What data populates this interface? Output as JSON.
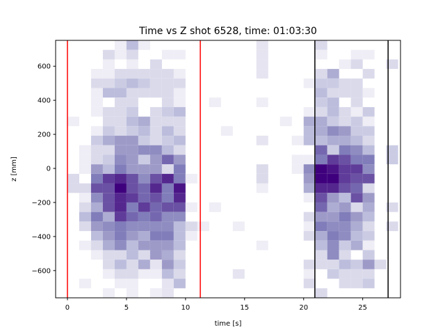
{
  "chart_data": {
    "type": "heatmap",
    "title": "Time vs Z shot 6528, time: 01:03:30",
    "xlabel": "time [s]",
    "ylabel": "z [mm]",
    "xlim": [
      -1.0,
      28.2
    ],
    "ylim": [
      -760,
      752
    ],
    "xticks": [
      0,
      5,
      10,
      15,
      20,
      25
    ],
    "yticks": [
      -600,
      -400,
      -200,
      0,
      200,
      400,
      600
    ],
    "colormap": "Purples",
    "t_bin_width": 1,
    "z_bin_top": 752,
    "z_bin_height": 56,
    "cells_note_format": "[t_start, z_row_from_top, relative_count_0_to_8]",
    "cells": [
      [
        4,
        0,
        1
      ],
      [
        5,
        0,
        3
      ],
      [
        6,
        0,
        1
      ],
      [
        3,
        1,
        2
      ],
      [
        4,
        1,
        1
      ],
      [
        5,
        1,
        2
      ],
      [
        8,
        1,
        1
      ],
      [
        9,
        1,
        1
      ],
      [
        3,
        2,
        1
      ],
      [
        5,
        2,
        1
      ],
      [
        7,
        2,
        2
      ],
      [
        2,
        3,
        1
      ],
      [
        3,
        3,
        1
      ],
      [
        4,
        3,
        2
      ],
      [
        5,
        3,
        2
      ],
      [
        6,
        3,
        2
      ],
      [
        7,
        3,
        2
      ],
      [
        8,
        3,
        2
      ],
      [
        9,
        3,
        1
      ],
      [
        2,
        4,
        2
      ],
      [
        3,
        4,
        2
      ],
      [
        4,
        4,
        2.5
      ],
      [
        5,
        4,
        3
      ],
      [
        6,
        4,
        2.5
      ],
      [
        7,
        4,
        2
      ],
      [
        8,
        4,
        2
      ],
      [
        9,
        4,
        2
      ],
      [
        2,
        5,
        1
      ],
      [
        3,
        5,
        3
      ],
      [
        4,
        5,
        3
      ],
      [
        5,
        5,
        2
      ],
      [
        6,
        5,
        2
      ],
      [
        7,
        5,
        2
      ],
      [
        8,
        5,
        2
      ],
      [
        9,
        5,
        1
      ],
      [
        2,
        6,
        1
      ],
      [
        4,
        6,
        2
      ],
      [
        5,
        6,
        2
      ],
      [
        8,
        6,
        2
      ],
      [
        9,
        6,
        1
      ],
      [
        2,
        7,
        1
      ],
      [
        3,
        7,
        2
      ],
      [
        4,
        7,
        2
      ],
      [
        5,
        7,
        2.5
      ],
      [
        7,
        7,
        2
      ],
      [
        8,
        7,
        2.5
      ],
      [
        9,
        7,
        3
      ],
      [
        0,
        8,
        1
      ],
      [
        3,
        8,
        2
      ],
      [
        4,
        8,
        2
      ],
      [
        5,
        8,
        3
      ],
      [
        6,
        8,
        3.5
      ],
      [
        7,
        8,
        2
      ],
      [
        8,
        8,
        2
      ],
      [
        9,
        8,
        2
      ],
      [
        2,
        9,
        1
      ],
      [
        3,
        9,
        2.5
      ],
      [
        4,
        9,
        2
      ],
      [
        5,
        9,
        2.5
      ],
      [
        6,
        9,
        3
      ],
      [
        7,
        9,
        2
      ],
      [
        8,
        9,
        3
      ],
      [
        9,
        9,
        2
      ],
      [
        2,
        10,
        2.5
      ],
      [
        3,
        10,
        3.5
      ],
      [
        4,
        10,
        4
      ],
      [
        5,
        10,
        4
      ],
      [
        6,
        10,
        2.5
      ],
      [
        7,
        10,
        2
      ],
      [
        8,
        10,
        2.5
      ],
      [
        9,
        10,
        3
      ],
      [
        1,
        11,
        1
      ],
      [
        2,
        11,
        2
      ],
      [
        3,
        11,
        2
      ],
      [
        4,
        11,
        4
      ],
      [
        5,
        11,
        4
      ],
      [
        6,
        11,
        4.5
      ],
      [
        7,
        11,
        4.5
      ],
      [
        8,
        11,
        3
      ],
      [
        9,
        11,
        2
      ],
      [
        1,
        12,
        1
      ],
      [
        2,
        12,
        2
      ],
      [
        3,
        12,
        2.5
      ],
      [
        4,
        12,
        4.5
      ],
      [
        5,
        12,
        4
      ],
      [
        6,
        12,
        2.5
      ],
      [
        7,
        12,
        4
      ],
      [
        8,
        12,
        5.5
      ],
      [
        9,
        12,
        4
      ],
      [
        1,
        13,
        1
      ],
      [
        2,
        13,
        4
      ],
      [
        3,
        13,
        3
      ],
      [
        4,
        13,
        5
      ],
      [
        5,
        13,
        4
      ],
      [
        6,
        13,
        4
      ],
      [
        7,
        13,
        4
      ],
      [
        8,
        13,
        2
      ],
      [
        9,
        13,
        5
      ],
      [
        0,
        14,
        2
      ],
      [
        2,
        14,
        5
      ],
      [
        3,
        14,
        6.5
      ],
      [
        4,
        14,
        7
      ],
      [
        5,
        14,
        6
      ],
      [
        6,
        14,
        4.5
      ],
      [
        7,
        14,
        6
      ],
      [
        8,
        14,
        7
      ],
      [
        9,
        14,
        5
      ],
      [
        10,
        14,
        1
      ],
      [
        0,
        15,
        2
      ],
      [
        1,
        15,
        2
      ],
      [
        2,
        15,
        6
      ],
      [
        3,
        15,
        6
      ],
      [
        4,
        15,
        8
      ],
      [
        5,
        15,
        6
      ],
      [
        6,
        15,
        5.5
      ],
      [
        7,
        15,
        7
      ],
      [
        8,
        15,
        5
      ],
      [
        9,
        15,
        7.5
      ],
      [
        1,
        16,
        1
      ],
      [
        2,
        16,
        4.5
      ],
      [
        3,
        16,
        6
      ],
      [
        4,
        16,
        7
      ],
      [
        5,
        16,
        6.5
      ],
      [
        6,
        16,
        5.5
      ],
      [
        7,
        16,
        6
      ],
      [
        8,
        16,
        5
      ],
      [
        9,
        16,
        7
      ],
      [
        1,
        17,
        2
      ],
      [
        2,
        17,
        3.5
      ],
      [
        3,
        17,
        6
      ],
      [
        4,
        17,
        7
      ],
      [
        5,
        17,
        5
      ],
      [
        6,
        17,
        6.5
      ],
      [
        7,
        17,
        5.5
      ],
      [
        8,
        17,
        6
      ],
      [
        9,
        17,
        6
      ],
      [
        10,
        17,
        1
      ],
      [
        1,
        18,
        3
      ],
      [
        2,
        18,
        5
      ],
      [
        3,
        18,
        3.5
      ],
      [
        4,
        18,
        6.5
      ],
      [
        5,
        18,
        5.5
      ],
      [
        6,
        18,
        5
      ],
      [
        7,
        18,
        5.5
      ],
      [
        8,
        18,
        4.5
      ],
      [
        9,
        18,
        4.5
      ],
      [
        1,
        19,
        2
      ],
      [
        2,
        19,
        4
      ],
      [
        3,
        19,
        4.5
      ],
      [
        4,
        19,
        5
      ],
      [
        5,
        19,
        4.5
      ],
      [
        6,
        19,
        4.5
      ],
      [
        7,
        19,
        4.5
      ],
      [
        8,
        19,
        4.5
      ],
      [
        9,
        19,
        3
      ],
      [
        10,
        19,
        2
      ],
      [
        2,
        20,
        3
      ],
      [
        3,
        20,
        4
      ],
      [
        4,
        20,
        5
      ],
      [
        5,
        20,
        4
      ],
      [
        6,
        20,
        3.5
      ],
      [
        7,
        20,
        5
      ],
      [
        8,
        20,
        5
      ],
      [
        9,
        20,
        3
      ],
      [
        10,
        20,
        1
      ],
      [
        1,
        21,
        1
      ],
      [
        2,
        21,
        2
      ],
      [
        3,
        21,
        3.5
      ],
      [
        4,
        21,
        4.5
      ],
      [
        5,
        21,
        3
      ],
      [
        6,
        21,
        4
      ],
      [
        7,
        21,
        4
      ],
      [
        8,
        21,
        4
      ],
      [
        9,
        21,
        3
      ],
      [
        2,
        22,
        1
      ],
      [
        3,
        22,
        2
      ],
      [
        4,
        22,
        2
      ],
      [
        5,
        22,
        3
      ],
      [
        6,
        22,
        2
      ],
      [
        7,
        22,
        4
      ],
      [
        8,
        22,
        3.5
      ],
      [
        9,
        22,
        2
      ],
      [
        3,
        23,
        2
      ],
      [
        4,
        23,
        3
      ],
      [
        5,
        23,
        2
      ],
      [
        6,
        23,
        3.5
      ],
      [
        7,
        23,
        1.5
      ],
      [
        8,
        23,
        4
      ],
      [
        9,
        23,
        2.5
      ],
      [
        3,
        24,
        1
      ],
      [
        4,
        24,
        2
      ],
      [
        5,
        24,
        2
      ],
      [
        6,
        24,
        1
      ],
      [
        7,
        24,
        1
      ],
      [
        8,
        24,
        3
      ],
      [
        9,
        24,
        2
      ],
      [
        1,
        25,
        1
      ],
      [
        4,
        25,
        1
      ],
      [
        5,
        25,
        1
      ],
      [
        8,
        25,
        1.5
      ],
      [
        9,
        25,
        3
      ],
      [
        3,
        26,
        1
      ],
      [
        5,
        26,
        1
      ],
      [
        7,
        26,
        1
      ],
      [
        8,
        26,
        1.5
      ],
      [
        11,
        19,
        1
      ],
      [
        12,
        6,
        1
      ],
      [
        12,
        17,
        1
      ],
      [
        13,
        9,
        1
      ],
      [
        14,
        19,
        1
      ],
      [
        14,
        24,
        1.5
      ],
      [
        16,
        0,
        1.5
      ],
      [
        16,
        1,
        1.5
      ],
      [
        16,
        2,
        1.5
      ],
      [
        16,
        3,
        1.5
      ],
      [
        16,
        6,
        1
      ],
      [
        16,
        10,
        1.5
      ],
      [
        16,
        13,
        2
      ],
      [
        16,
        14,
        2
      ],
      [
        16,
        15,
        1
      ],
      [
        16,
        21,
        1
      ],
      [
        18,
        8,
        1
      ],
      [
        19,
        13,
        1
      ],
      [
        19,
        12,
        1
      ],
      [
        19,
        10,
        1
      ],
      [
        20,
        4,
        1
      ],
      [
        20,
        7,
        1
      ],
      [
        20,
        8,
        3.5
      ],
      [
        20,
        9,
        3
      ],
      [
        20,
        10,
        3
      ],
      [
        20,
        12,
        1
      ],
      [
        20,
        13,
        4.5
      ],
      [
        20,
        14,
        4
      ],
      [
        20,
        15,
        3.5
      ],
      [
        20,
        16,
        1
      ],
      [
        20,
        18,
        2
      ],
      [
        20,
        19,
        1
      ],
      [
        20,
        20,
        2
      ],
      [
        20,
        23,
        2
      ],
      [
        20,
        24,
        1
      ],
      [
        20,
        25,
        2
      ],
      [
        21,
        0,
        2
      ],
      [
        21,
        1,
        1
      ],
      [
        21,
        3,
        2
      ],
      [
        21,
        4,
        2.5
      ],
      [
        21,
        5,
        3
      ],
      [
        21,
        6,
        2.5
      ],
      [
        21,
        7,
        2
      ],
      [
        21,
        8,
        3.5
      ],
      [
        21,
        9,
        3.5
      ],
      [
        21,
        10,
        3
      ],
      [
        21,
        11,
        5.5
      ],
      [
        21,
        12,
        5
      ],
      [
        21,
        13,
        8
      ],
      [
        21,
        14,
        8
      ],
      [
        21,
        15,
        7
      ],
      [
        21,
        16,
        6
      ],
      [
        21,
        17,
        5.5
      ],
      [
        21,
        18,
        4
      ],
      [
        21,
        19,
        5
      ],
      [
        21,
        20,
        3.5
      ],
      [
        21,
        21,
        3
      ],
      [
        21,
        22,
        2
      ],
      [
        21,
        23,
        2
      ],
      [
        21,
        26,
        2
      ],
      [
        22,
        3,
        3.5
      ],
      [
        22,
        4,
        2.5
      ],
      [
        22,
        5,
        2
      ],
      [
        22,
        6,
        3
      ],
      [
        22,
        7,
        3
      ],
      [
        22,
        8,
        2.5
      ],
      [
        22,
        9,
        4.5
      ],
      [
        22,
        10,
        3.5
      ],
      [
        22,
        11,
        2.5
      ],
      [
        22,
        12,
        6.5
      ],
      [
        22,
        13,
        7.5
      ],
      [
        22,
        14,
        8
      ],
      [
        22,
        15,
        7
      ],
      [
        22,
        16,
        4
      ],
      [
        22,
        17,
        3.5
      ],
      [
        22,
        18,
        4
      ],
      [
        22,
        19,
        4.5
      ],
      [
        22,
        20,
        5
      ],
      [
        22,
        21,
        4.5
      ],
      [
        22,
        22,
        4.5
      ],
      [
        22,
        23,
        2
      ],
      [
        22,
        24,
        2.5
      ],
      [
        23,
        2,
        1
      ],
      [
        23,
        4,
        2
      ],
      [
        23,
        5,
        2
      ],
      [
        23,
        7,
        2
      ],
      [
        23,
        8,
        2
      ],
      [
        23,
        9,
        4
      ],
      [
        23,
        10,
        3.5
      ],
      [
        23,
        11,
        5
      ],
      [
        23,
        12,
        6
      ],
      [
        23,
        13,
        6.5
      ],
      [
        23,
        14,
        6.5
      ],
      [
        23,
        15,
        6
      ],
      [
        23,
        16,
        3
      ],
      [
        23,
        17,
        4
      ],
      [
        23,
        18,
        5
      ],
      [
        23,
        19,
        4.5
      ],
      [
        23,
        20,
        4.5
      ],
      [
        23,
        21,
        2.5
      ],
      [
        23,
        22,
        2
      ],
      [
        23,
        23,
        3
      ],
      [
        23,
        24,
        2
      ],
      [
        23,
        25,
        2
      ],
      [
        24,
        1,
        1
      ],
      [
        24,
        2,
        2
      ],
      [
        24,
        4,
        2
      ],
      [
        24,
        5,
        2
      ],
      [
        24,
        6,
        2
      ],
      [
        24,
        7,
        1
      ],
      [
        24,
        8,
        2.5
      ],
      [
        24,
        9,
        2.5
      ],
      [
        24,
        10,
        3
      ],
      [
        24,
        11,
        4.5
      ],
      [
        24,
        12,
        5
      ],
      [
        24,
        13,
        6.5
      ],
      [
        24,
        14,
        6
      ],
      [
        24,
        15,
        5.5
      ],
      [
        24,
        16,
        6
      ],
      [
        24,
        17,
        2
      ],
      [
        24,
        18,
        4
      ],
      [
        24,
        19,
        3.5
      ],
      [
        24,
        20,
        3
      ],
      [
        24,
        21,
        3.5
      ],
      [
        24,
        23,
        2.5
      ],
      [
        24,
        24,
        2
      ],
      [
        24,
        25,
        2
      ],
      [
        25,
        1,
        1
      ],
      [
        25,
        3,
        2
      ],
      [
        25,
        5,
        1
      ],
      [
        25,
        7,
        2.5
      ],
      [
        25,
        8,
        1
      ],
      [
        25,
        9,
        2.5
      ],
      [
        25,
        10,
        2
      ],
      [
        25,
        11,
        3
      ],
      [
        25,
        12,
        5
      ],
      [
        25,
        13,
        4.5
      ],
      [
        25,
        14,
        6
      ],
      [
        25,
        15,
        2
      ],
      [
        25,
        16,
        4
      ],
      [
        25,
        17,
        3.5
      ],
      [
        25,
        18,
        3
      ],
      [
        25,
        19,
        2
      ],
      [
        25,
        20,
        2.5
      ],
      [
        25,
        21,
        1
      ],
      [
        25,
        22,
        2.5
      ],
      [
        25,
        23,
        4
      ],
      [
        25,
        24,
        2
      ],
      [
        25,
        25,
        2.5
      ],
      [
        26,
        23,
        2
      ],
      [
        27,
        2,
        2
      ],
      [
        27,
        11,
        2.5
      ],
      [
        27,
        12,
        2.5
      ],
      [
        27,
        17,
        2
      ],
      [
        27,
        19,
        2
      ]
    ],
    "vlines": [
      {
        "t": 0,
        "color": "#ff0000"
      },
      {
        "t": 11.25,
        "color": "#ff0000"
      },
      {
        "t": 20.95,
        "color": "#000000"
      },
      {
        "t": 27.15,
        "color": "#000000"
      }
    ]
  }
}
